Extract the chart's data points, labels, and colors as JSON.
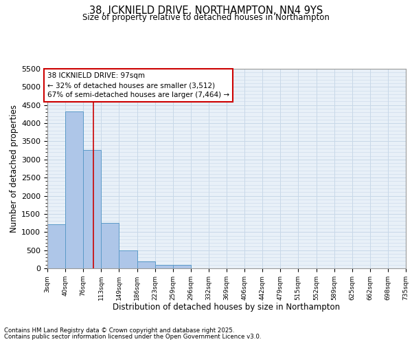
{
  "title_line1": "38, ICKNIELD DRIVE, NORTHAMPTON, NN4 9YS",
  "title_line2": "Size of property relative to detached houses in Northampton",
  "xlabel": "Distribution of detached houses by size in Northampton",
  "ylabel": "Number of detached properties",
  "annotation_text": "38 ICKNIELD DRIVE: 97sqm\n← 32% of detached houses are smaller (3,512)\n67% of semi-detached houses are larger (7,464) →",
  "footer_line1": "Contains HM Land Registry data © Crown copyright and database right 2025.",
  "footer_line2": "Contains public sector information licensed under the Open Government Licence v3.0.",
  "bar_edges": [
    3,
    40,
    76,
    113,
    149,
    186,
    223,
    259,
    296,
    332,
    369,
    406,
    442,
    479,
    515,
    552,
    589,
    625,
    662,
    698,
    735
  ],
  "bar_heights": [
    1215,
    4330,
    3270,
    1260,
    500,
    195,
    100,
    100,
    0,
    0,
    0,
    0,
    0,
    0,
    0,
    0,
    0,
    0,
    0,
    0
  ],
  "bar_color": "#aec6e8",
  "bar_edge_color": "#5a9ac8",
  "grid_color": "#c8d8e8",
  "bg_color": "#e8f0f8",
  "red_line_x": 97,
  "annotation_box_color": "#ffffff",
  "annotation_box_edge_color": "#cc0000",
  "ylim": [
    0,
    5500
  ],
  "yticks": [
    0,
    500,
    1000,
    1500,
    2000,
    2500,
    3000,
    3500,
    4000,
    4500,
    5000,
    5500
  ]
}
